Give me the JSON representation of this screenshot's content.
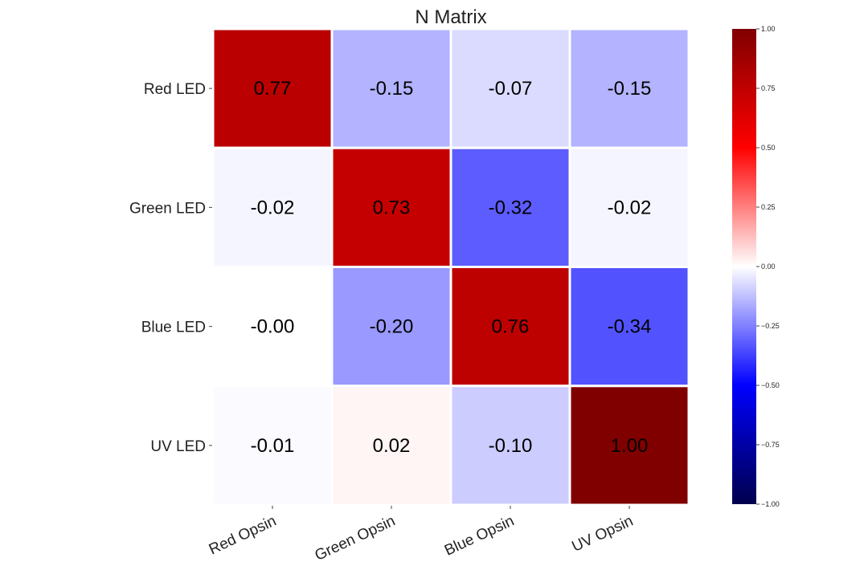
{
  "chart_data": {
    "type": "heatmap",
    "title": "N Matrix",
    "rows": [
      "Red LED",
      "Green LED",
      "Blue LED",
      "UV LED"
    ],
    "columns": [
      "Red Opsin",
      "Green Opsin",
      "Blue Opsin",
      "UV Opsin"
    ],
    "values": [
      [
        0.77,
        -0.15,
        -0.07,
        -0.15
      ],
      [
        -0.02,
        0.73,
        -0.32,
        -0.02
      ],
      [
        -0.0,
        -0.2,
        0.76,
        -0.34
      ],
      [
        -0.01,
        0.02,
        -0.1,
        1.0
      ]
    ],
    "cell_labels": [
      [
        "0.77",
        "-0.15",
        "-0.07",
        "-0.15"
      ],
      [
        "-0.02",
        "0.73",
        "-0.32",
        "-0.02"
      ],
      [
        "-0.00",
        "-0.20",
        "0.76",
        "-0.34"
      ],
      [
        "-0.01",
        "0.02",
        "-0.10",
        "1.00"
      ]
    ],
    "colormap": "seismic",
    "colorbar": {
      "range": [
        -1.0,
        1.0
      ],
      "ticks": [
        1.0,
        0.75,
        0.5,
        0.25,
        0.0,
        -0.25,
        -0.5,
        -0.75,
        -1.0
      ],
      "tick_labels": [
        "1.00",
        "0.75",
        "0.50",
        "0.25",
        "0.00",
        "−0.25",
        "−0.50",
        "−0.75",
        "−1.00"
      ]
    },
    "legend_placement": "right"
  }
}
